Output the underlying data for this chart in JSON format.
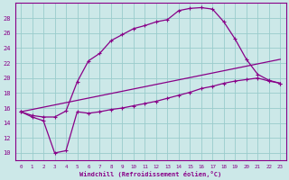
{
  "xlabel": "Windchill (Refroidissement éolien,°C)",
  "xlim": [
    -0.5,
    23.5
  ],
  "ylim": [
    9,
    30
  ],
  "xticks": [
    0,
    1,
    2,
    3,
    4,
    5,
    6,
    7,
    8,
    9,
    10,
    11,
    12,
    13,
    14,
    15,
    16,
    17,
    18,
    19,
    20,
    21,
    22,
    23
  ],
  "yticks": [
    10,
    12,
    14,
    16,
    18,
    20,
    22,
    24,
    26,
    28
  ],
  "bg_color": "#cce8e8",
  "line_color": "#880088",
  "grid_color": "#99cccc",
  "upper_curve_x": [
    0,
    1,
    2,
    3,
    4,
    5,
    6,
    7,
    8,
    9,
    10,
    11,
    12,
    13,
    14,
    15,
    16,
    17,
    18,
    19,
    20,
    21,
    22,
    23
  ],
  "upper_curve_y": [
    15.5,
    15.0,
    14.8,
    14.8,
    15.6,
    19.5,
    22.3,
    23.3,
    25.0,
    25.8,
    26.6,
    27.0,
    27.5,
    27.8,
    29.0,
    29.3,
    29.4,
    29.2,
    27.5,
    25.2,
    22.5,
    20.5,
    19.7,
    19.3
  ],
  "lower_curve_x": [
    0,
    1,
    2,
    3,
    4,
    5,
    6,
    7,
    8,
    9,
    10,
    11,
    12,
    13,
    14,
    15,
    16,
    17,
    18,
    19,
    20,
    21,
    22,
    23
  ],
  "lower_curve_y": [
    15.5,
    14.8,
    14.3,
    10.0,
    10.3,
    15.5,
    15.3,
    15.5,
    15.8,
    16.0,
    16.3,
    16.6,
    16.9,
    17.3,
    17.7,
    18.1,
    18.6,
    18.9,
    19.3,
    19.6,
    19.8,
    20.0,
    19.6,
    19.3
  ],
  "mid_line_x": [
    0,
    23
  ],
  "mid_line_y": [
    15.5,
    22.5
  ],
  "xlabel_fontsize": 5.0,
  "xtick_fontsize": 4.2,
  "ytick_fontsize": 5.0
}
